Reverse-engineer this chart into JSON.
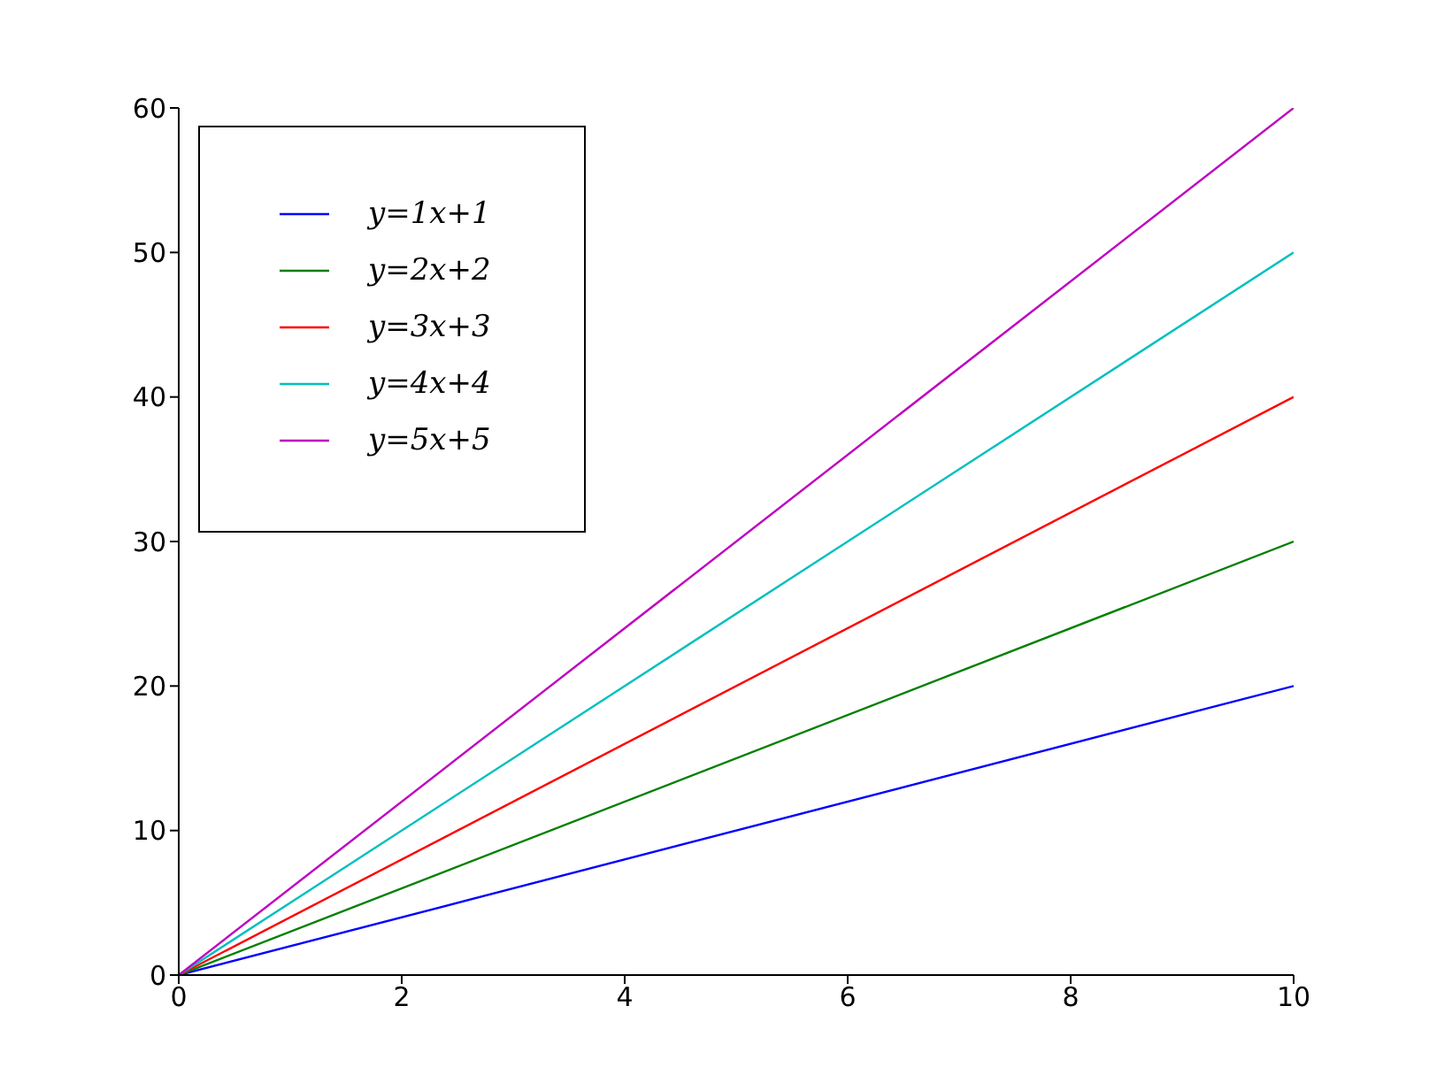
{
  "chart_data": {
    "type": "line",
    "x": [
      0,
      10
    ],
    "series": [
      {
        "name": "y=1x+1",
        "color": "#0000ff",
        "values": [
          0,
          20
        ]
      },
      {
        "name": "y=2x+2",
        "color": "#008000",
        "values": [
          0,
          30
        ]
      },
      {
        "name": "y=3x+3",
        "color": "#ff0000",
        "values": [
          0,
          40
        ]
      },
      {
        "name": "y=4x+4",
        "color": "#00bfbf",
        "values": [
          0,
          50
        ]
      },
      {
        "name": "y=5x+5",
        "color": "#bf00bf",
        "values": [
          0,
          60
        ]
      }
    ],
    "xlim": [
      0,
      10
    ],
    "xticks": [
      0,
      2,
      4,
      6,
      8,
      10
    ],
    "ylim": [
      0,
      60
    ],
    "yticks": [
      0,
      10,
      20,
      30,
      40,
      50,
      60
    ],
    "grid": false,
    "legend": "top left",
    "marker": "none",
    "line_style": "solid"
  }
}
